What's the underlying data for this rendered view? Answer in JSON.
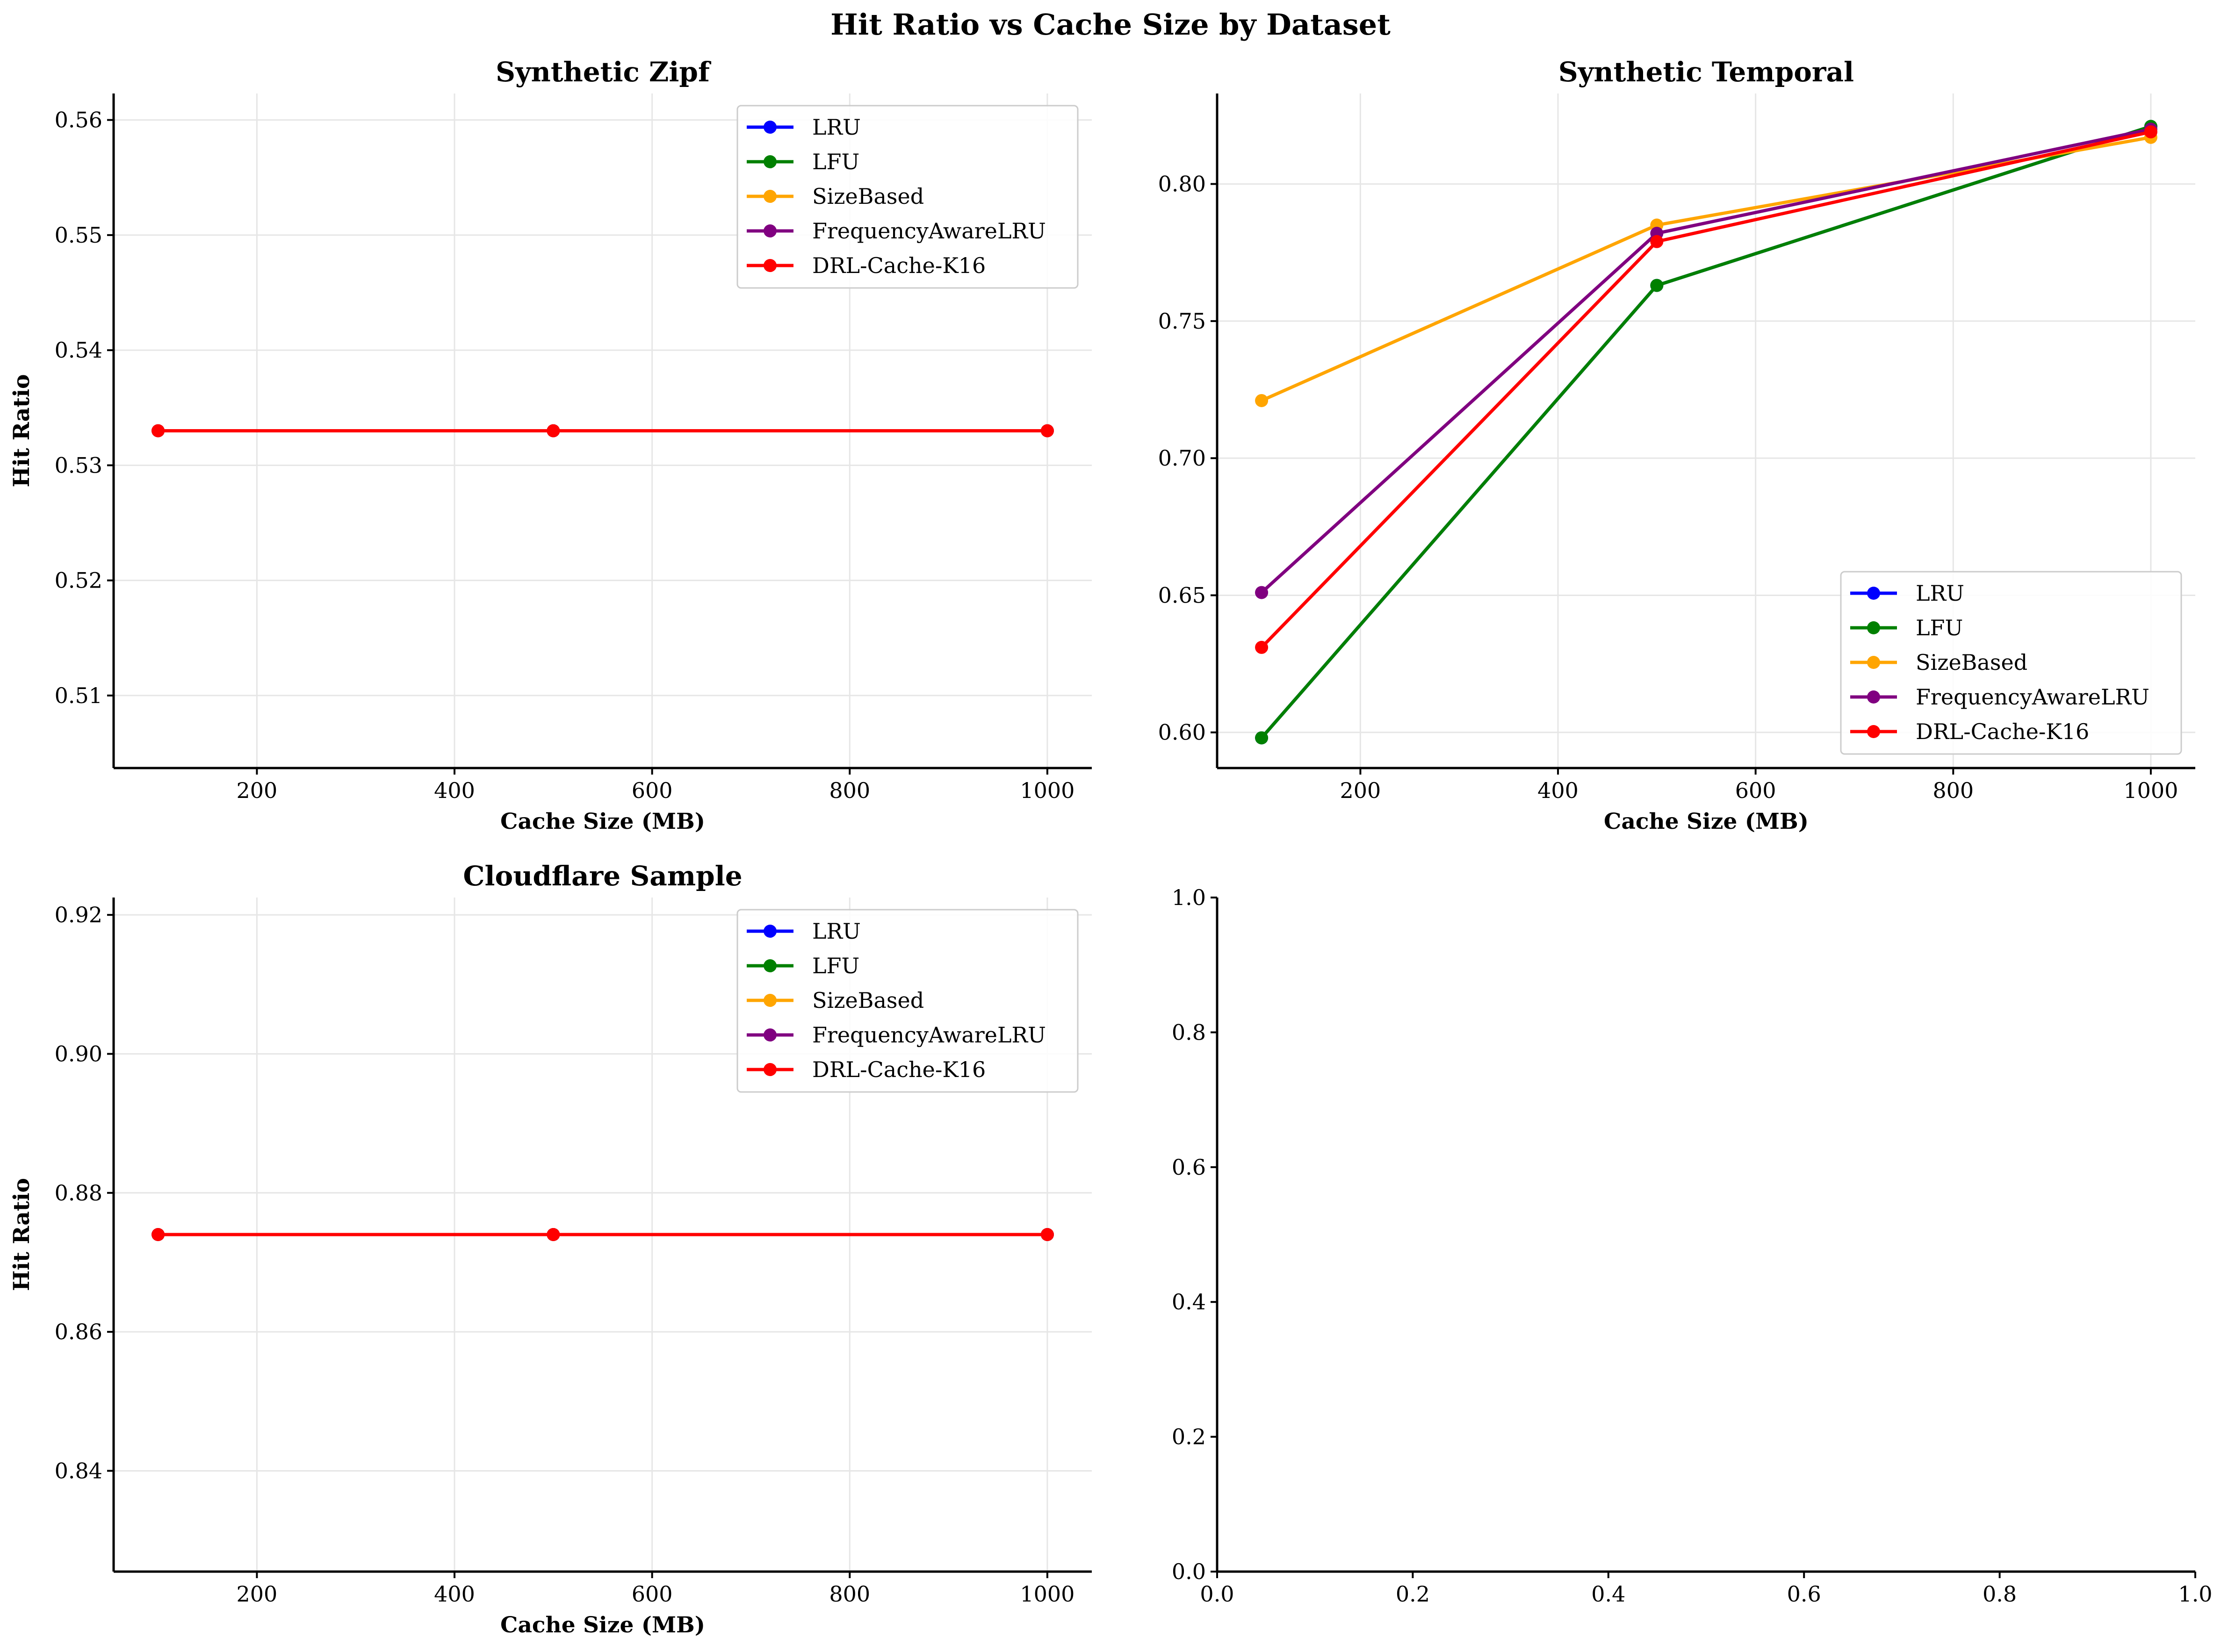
{
  "figure": {
    "title": "Hit Ratio vs Cache Size by Dataset"
  },
  "colors": {
    "LRU": "#0000ff",
    "LFU": "#008000",
    "SizeBased": "#ffa500",
    "FrequencyAwareLRU": "#800080",
    "DRL-Cache-K16": "#ff0000"
  },
  "chart_data": [
    {
      "type": "line",
      "title": "Synthetic Zipf",
      "xlabel": "Cache Size (MB)",
      "ylabel": "Hit Ratio",
      "x": [
        100,
        500,
        1000
      ],
      "xlim": [
        55,
        1045
      ],
      "ylim": [
        0.5037,
        0.5623
      ],
      "xticks": [
        200,
        400,
        600,
        800,
        1000
      ],
      "yticks": [
        0.51,
        0.52,
        0.53,
        0.54,
        0.55,
        0.56
      ],
      "ytick_labels": [
        "0.51",
        "0.52",
        "0.53",
        "0.54",
        "0.55",
        "0.56"
      ],
      "grid": true,
      "legend_position": "upper-right",
      "series": [
        {
          "name": "LRU",
          "values": [
            0.533,
            0.533,
            0.533
          ]
        },
        {
          "name": "LFU",
          "values": [
            0.533,
            0.533,
            0.533
          ]
        },
        {
          "name": "SizeBased",
          "values": [
            0.533,
            0.533,
            0.533
          ]
        },
        {
          "name": "FrequencyAwareLRU",
          "values": [
            0.533,
            0.533,
            0.533
          ]
        },
        {
          "name": "DRL-Cache-K16",
          "values": [
            0.533,
            0.533,
            0.533
          ]
        }
      ]
    },
    {
      "type": "line",
      "title": "Synthetic Temporal",
      "xlabel": "Cache Size (MB)",
      "ylabel": "Hit Ratio",
      "x": [
        100,
        500,
        1000
      ],
      "xlim": [
        55,
        1045
      ],
      "ylim": [
        0.587,
        0.833
      ],
      "xticks": [
        200,
        400,
        600,
        800,
        1000
      ],
      "yticks": [
        0.6,
        0.65,
        0.7,
        0.75,
        0.8
      ],
      "ytick_labels": [
        "0.60",
        "0.65",
        "0.70",
        "0.75",
        "0.80"
      ],
      "grid": true,
      "legend_position": "lower-right",
      "series": [
        {
          "name": "LRU",
          "values": [
            0.598,
            0.763,
            0.821
          ]
        },
        {
          "name": "LFU",
          "values": [
            0.598,
            0.763,
            0.821
          ]
        },
        {
          "name": "SizeBased",
          "values": [
            0.721,
            0.785,
            0.817
          ]
        },
        {
          "name": "FrequencyAwareLRU",
          "values": [
            0.651,
            0.782,
            0.82
          ]
        },
        {
          "name": "DRL-Cache-K16",
          "values": [
            0.631,
            0.779,
            0.819
          ]
        }
      ]
    },
    {
      "type": "line",
      "title": "Cloudflare Sample",
      "xlabel": "Cache Size (MB)",
      "ylabel": "Hit Ratio",
      "x": [
        100,
        500,
        1000
      ],
      "xlim": [
        55,
        1045
      ],
      "ylim": [
        0.8255,
        0.9225
      ],
      "xticks": [
        200,
        400,
        600,
        800,
        1000
      ],
      "yticks": [
        0.84,
        0.86,
        0.88,
        0.9,
        0.92
      ],
      "ytick_labels": [
        "0.84",
        "0.86",
        "0.88",
        "0.90",
        "0.92"
      ],
      "grid": true,
      "legend_position": "upper-right",
      "series": [
        {
          "name": "LRU",
          "values": [
            0.874,
            0.874,
            0.874
          ]
        },
        {
          "name": "LFU",
          "values": [
            0.874,
            0.874,
            0.874
          ]
        },
        {
          "name": "SizeBased",
          "values": [
            0.874,
            0.874,
            0.874
          ]
        },
        {
          "name": "FrequencyAwareLRU",
          "values": [
            0.874,
            0.874,
            0.874
          ]
        },
        {
          "name": "DRL-Cache-K16",
          "values": [
            0.874,
            0.874,
            0.874
          ]
        }
      ]
    },
    {
      "type": "empty",
      "title": "",
      "xlim": [
        0,
        1
      ],
      "ylim": [
        0,
        1
      ],
      "xticks": [
        0.0,
        0.2,
        0.4,
        0.6,
        0.8,
        1.0
      ],
      "yticks": [
        0.0,
        0.2,
        0.4,
        0.6,
        0.8,
        1.0
      ],
      "xtick_labels": [
        "0.0",
        "0.2",
        "0.4",
        "0.6",
        "0.8",
        "1.0"
      ],
      "ytick_labels": [
        "0.0",
        "0.2",
        "0.4",
        "0.6",
        "0.8",
        "1.0"
      ],
      "grid": false,
      "series": []
    }
  ]
}
